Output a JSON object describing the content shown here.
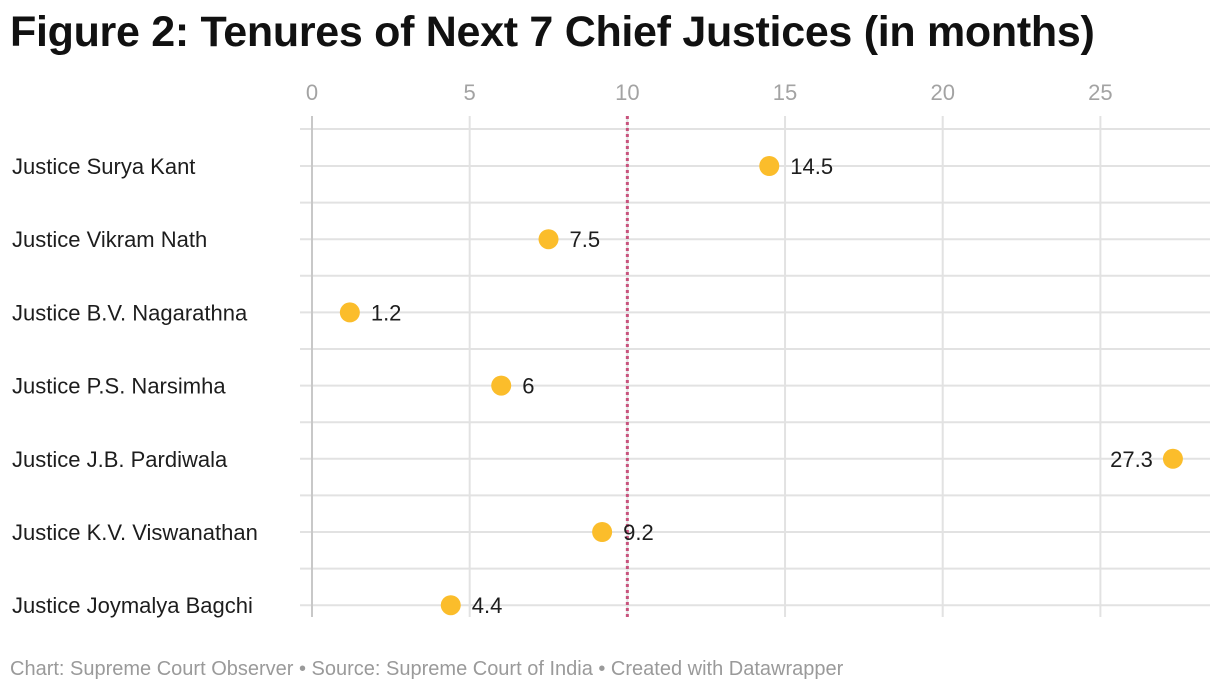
{
  "chart_data": {
    "type": "dot",
    "title": "Figure 2: Tenures of Next 7 Chief Justices (in months)",
    "xlim": [
      0,
      28
    ],
    "x_ticks": [
      0,
      5,
      10,
      15,
      20,
      25
    ],
    "x_tick_labels": [
      "0",
      "5",
      "10",
      "15",
      "20",
      "25"
    ],
    "categories": [
      "Justice Surya Kant",
      "Justice Vikram Nath",
      "Justice B.V. Nagarathna",
      "Justice P.S. Narsimha",
      "Justice J.B. Pardiwala",
      "Justice K.V. Viswanathan",
      "Justice Joymalya Bagchi"
    ],
    "values": [
      14.5,
      7.5,
      1.2,
      6,
      27.3,
      9.2,
      4.4
    ],
    "value_labels": [
      "14.5",
      "7.5",
      "1.2",
      "6",
      "27.3",
      "9.2",
      "4.4"
    ],
    "reference_line": {
      "x": 10,
      "style": "dotted"
    },
    "grid": true,
    "colors": {
      "dot": "#fbbd2b",
      "reference": "#c8537d",
      "grid": "#e2e2e2",
      "zero_axis": "#c8c8c8"
    }
  },
  "footer": "Chart: Supreme Court Observer • Source: Supreme Court of India • Created with Datawrapper"
}
